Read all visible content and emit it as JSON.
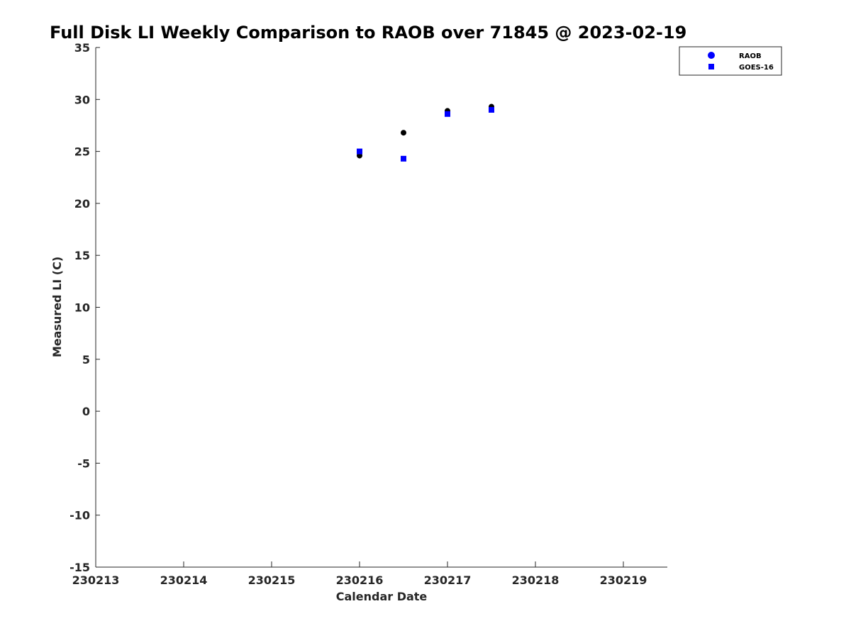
{
  "chart_data": {
    "type": "scatter",
    "title": "Full Disk LI Weekly Comparison to RAOB over 71845 @ 2023-02-19",
    "xlabel": "Calendar Date",
    "ylabel": "Measured LI (C)",
    "xlim": [
      "2023-02-13",
      "2023-02-19T12:00"
    ],
    "ylim": [
      -15,
      35
    ],
    "x_ticks": [
      {
        "date": "2023-02-13",
        "label": "230213"
      },
      {
        "date": "2023-02-14",
        "label": "230214"
      },
      {
        "date": "2023-02-15",
        "label": "230215"
      },
      {
        "date": "2023-02-16",
        "label": "230216"
      },
      {
        "date": "2023-02-17",
        "label": "230217"
      },
      {
        "date": "2023-02-18",
        "label": "230218"
      },
      {
        "date": "2023-02-19",
        "label": "230219"
      }
    ],
    "y_ticks": [
      35,
      30,
      25,
      20,
      15,
      10,
      5,
      0,
      -5,
      -10,
      -15
    ],
    "grid": false,
    "legend_position": "top-right",
    "series": [
      {
        "name": "RAOB",
        "marker": "circle",
        "color": "#000000",
        "legend_color": "#0000ff",
        "points": [
          {
            "x": "2023-02-16T00:00",
            "y": 24.6
          },
          {
            "x": "2023-02-16T12:00",
            "y": 26.8
          },
          {
            "x": "2023-02-17T00:00",
            "y": 28.9
          },
          {
            "x": "2023-02-17T12:00",
            "y": 29.3
          }
        ]
      },
      {
        "name": "GOES-16",
        "marker": "square",
        "color": "#0000ff",
        "legend_color": "#0000ff",
        "points": [
          {
            "x": "2023-02-16T00:00",
            "y": 25.0
          },
          {
            "x": "2023-02-16T12:00",
            "y": 24.3
          },
          {
            "x": "2023-02-17T00:00",
            "y": 28.6
          },
          {
            "x": "2023-02-17T12:00",
            "y": 29.0
          }
        ]
      }
    ]
  }
}
